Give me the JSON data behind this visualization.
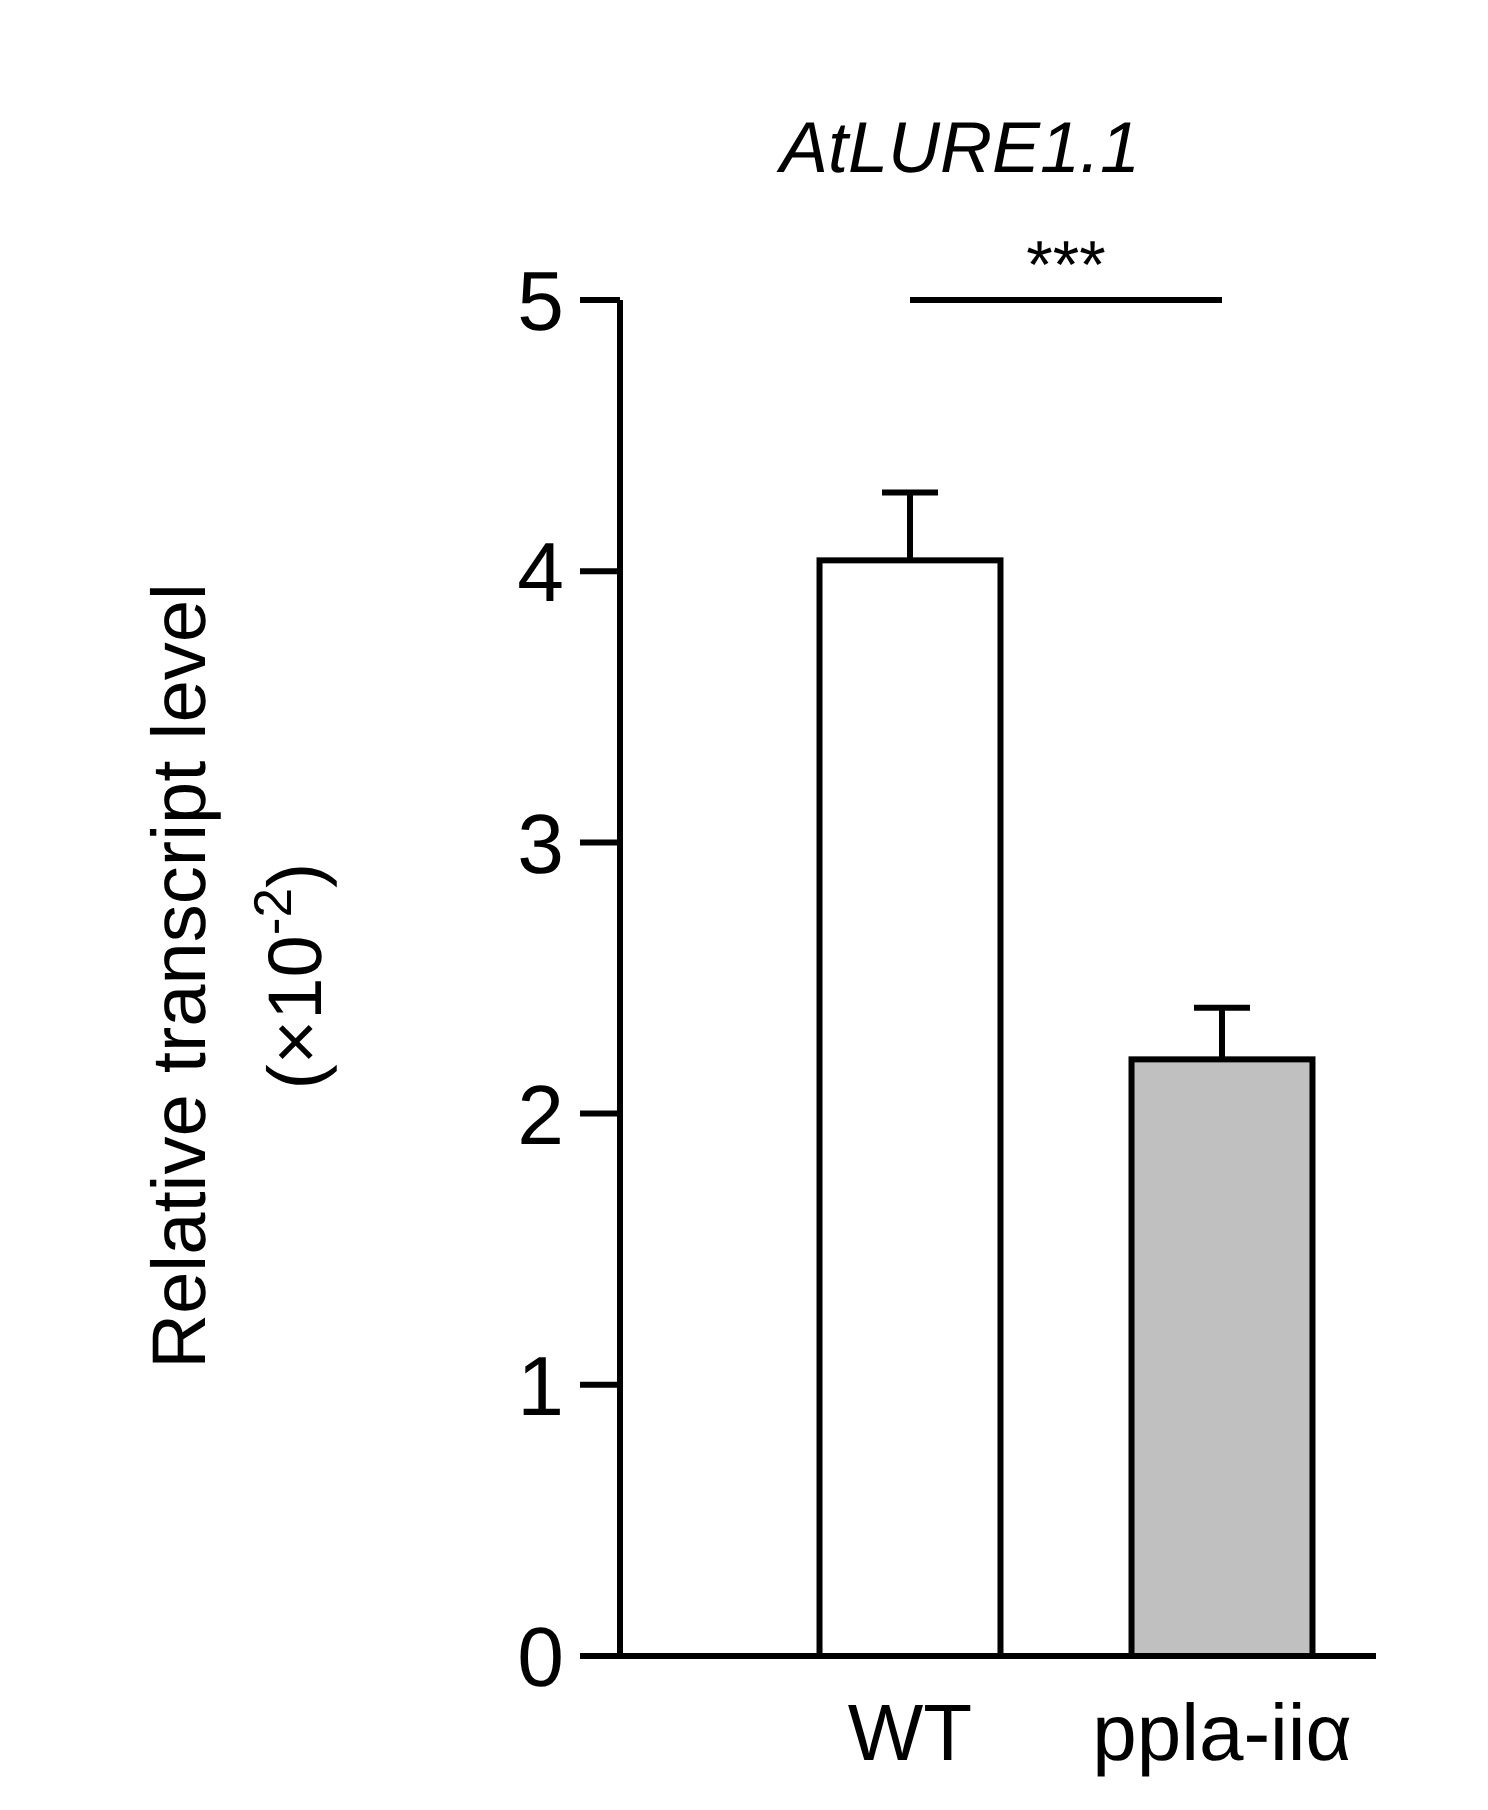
{
  "chart_data": {
    "type": "bar",
    "title": "AtLURE1.1",
    "ylabel": "Relative  transcript level\n(×10$^{-2}$)",
    "categories": [
      "WT",
      "ppla-iiα"
    ],
    "values": [
      4.04,
      2.2
    ],
    "colors": [
      "#ffffff",
      "#c0c0c0"
    ],
    "errors": [
      0.25,
      0.19
    ],
    "ylim": [
      0,
      5
    ],
    "yticks": [
      0,
      1,
      2,
      3,
      4,
      5
    ],
    "annotations": [
      "***"
    ],
    "grid": false
  }
}
